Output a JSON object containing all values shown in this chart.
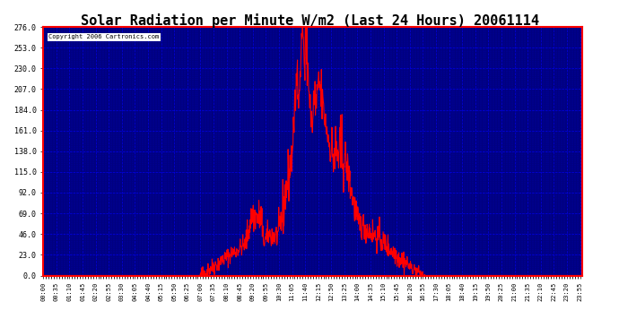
{
  "title": "Solar Radiation per Minute W/m2 (Last 24 Hours) 20061114",
  "copyright_text": "Copyright 2006 Cartronics.com",
  "bg_color": "#000080",
  "plot_bg_color": "#000080",
  "line_color": "#FF0000",
  "grid_color": "#0000FF",
  "text_color": "#FFFFFF",
  "axis_label_color": "#000000",
  "ylim": [
    0.0,
    276.0
  ],
  "yticks": [
    0.0,
    23.0,
    46.0,
    69.0,
    92.0,
    115.0,
    138.0,
    161.0,
    184.0,
    207.0,
    230.0,
    253.0,
    276.0
  ],
  "xtick_labels": [
    "00:00",
    "00:35",
    "01:10",
    "01:45",
    "02:20",
    "02:55",
    "03:30",
    "04:05",
    "04:40",
    "05:15",
    "05:50",
    "06:25",
    "07:00",
    "07:35",
    "08:10",
    "08:45",
    "09:20",
    "09:55",
    "10:30",
    "11:05",
    "11:40",
    "12:15",
    "12:50",
    "13:25",
    "14:00",
    "14:35",
    "15:10",
    "15:45",
    "16:20",
    "16:55",
    "17:30",
    "18:05",
    "18:40",
    "19:15",
    "19:50",
    "20:25",
    "21:00",
    "21:35",
    "22:10",
    "22:45",
    "23:20",
    "23:55"
  ],
  "num_points": 1440
}
